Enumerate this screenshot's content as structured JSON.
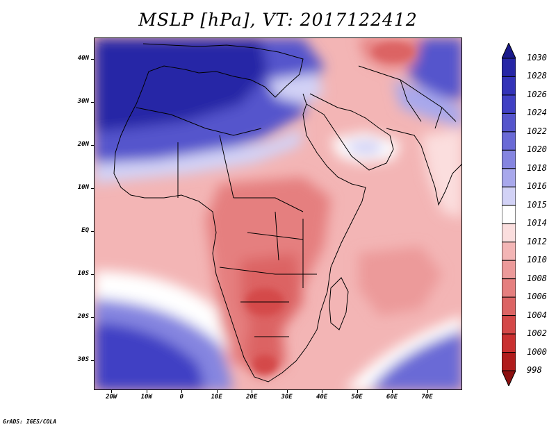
{
  "title": "MSLP [hPa], VT: 2017122412",
  "footer": "GrADS: IGES/COLA",
  "map": {
    "lon_range": [
      -25,
      80
    ],
    "lat_range": [
      -37,
      45
    ],
    "lat_labels": [
      {
        "text": "40N",
        "lat": 40
      },
      {
        "text": "30N",
        "lat": 30
      },
      {
        "text": "20N",
        "lat": 20
      },
      {
        "text": "10N",
        "lat": 10
      },
      {
        "text": "EQ",
        "lat": 0
      },
      {
        "text": "10S",
        "lat": -10
      },
      {
        "text": "20S",
        "lat": -20
      },
      {
        "text": "30S",
        "lat": -30
      }
    ],
    "lon_labels": [
      {
        "text": "20W",
        "lon": -20
      },
      {
        "text": "10W",
        "lon": -10
      },
      {
        "text": "0",
        "lon": 0
      },
      {
        "text": "10E",
        "lon": 10
      },
      {
        "text": "20E",
        "lon": 20
      },
      {
        "text": "30E",
        "lon": 30
      },
      {
        "text": "40E",
        "lon": 40
      },
      {
        "text": "50E",
        "lon": 50
      },
      {
        "text": "60E",
        "lon": 60
      },
      {
        "text": "70E",
        "lon": 70
      }
    ]
  },
  "colorbar": {
    "levels": [
      "1030",
      "1028",
      "1026",
      "1024",
      "1022",
      "1020",
      "1018",
      "1016",
      "1015",
      "1014",
      "1012",
      "1010",
      "1008",
      "1006",
      "1004",
      "1002",
      "1000",
      "998"
    ],
    "colors": [
      "#1a1a8c",
      "#2626a6",
      "#3333b8",
      "#4040c4",
      "#5555cc",
      "#6a6ad6",
      "#8585e0",
      "#a8a8ec",
      "#d2d2f6",
      "#ffffff",
      "#fbdede",
      "#f3b5b5",
      "#ec9a9a",
      "#e57f7f",
      "#dc6464",
      "#d44848",
      "#c93030",
      "#b01c1c",
      "#8c1010"
    ]
  }
}
